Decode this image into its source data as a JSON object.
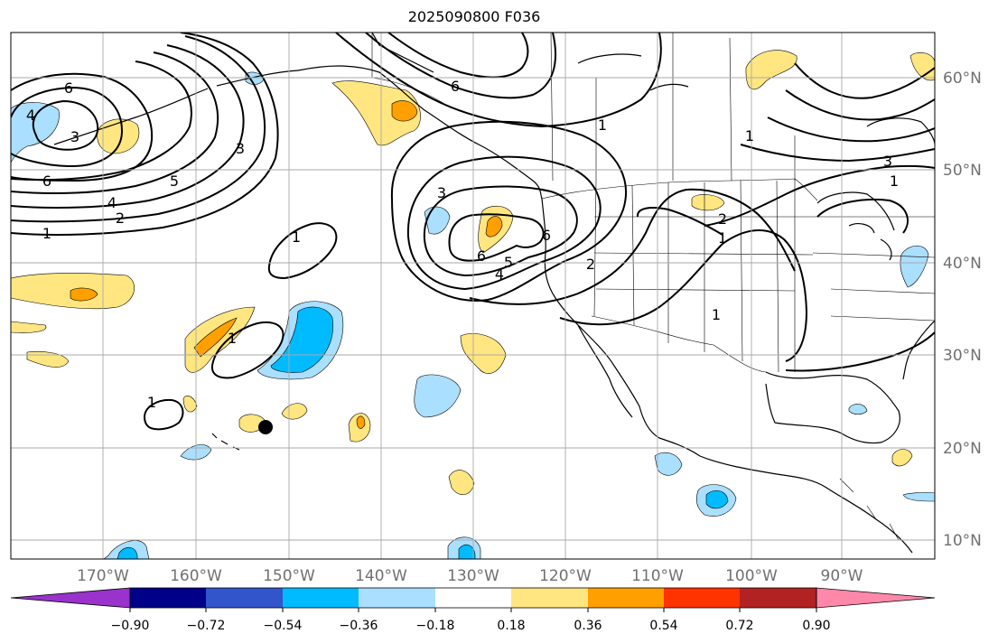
{
  "title": "2025090800 F036",
  "longitude_labels": [
    "170°W",
    "160°W",
    "150°W",
    "140°W",
    "130°W",
    "120°W",
    "110°W",
    "100°W",
    "90°W"
  ],
  "latitude_labels": [
    "60°N",
    "50°N",
    "40°N",
    "30°N",
    "20°N",
    "10°N"
  ],
  "colorbar": {
    "ticks": [
      "−0.90",
      "−0.72",
      "−0.54",
      "−0.36",
      "−0.18",
      "0.18",
      "0.36",
      "0.54",
      "0.72",
      "0.90"
    ],
    "colors": [
      "#9933cc",
      "#000088",
      "#3355cc",
      "#00bbff",
      "#aadfff",
      "#ffffff",
      "#ffe680",
      "#ffa000",
      "#ff3300",
      "#b22222",
      "#ff88aa"
    ]
  },
  "contour_labels": [
    "6",
    "3",
    "4",
    "6",
    "5",
    "4",
    "2",
    "1",
    "3",
    "1",
    "6",
    "1",
    "3",
    "6",
    "5",
    "4",
    "6",
    "2",
    "2",
    "1",
    "1",
    "3",
    "1",
    "1",
    "1",
    "1"
  ],
  "colors": {
    "positive_light": "#ffe680",
    "positive_mid": "#ffa000",
    "negative_light": "#aadfff",
    "negative_mid": "#00bbff",
    "contour": "#000000",
    "grid": "#aaaaaa",
    "axis_label": "#707070"
  }
}
